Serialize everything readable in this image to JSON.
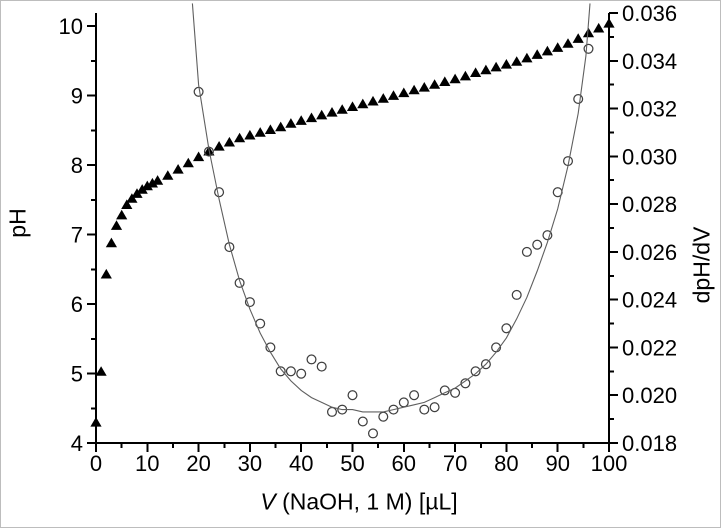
{
  "figure": {
    "background": "#ffffff",
    "border_color": "#bdbdbd",
    "axis_color": "#000000",
    "fit_line_color": "#5f5f5f",
    "circle_stroke_color": "#3f3f3f"
  },
  "chart_data": {
    "type": "scatter",
    "title": "",
    "xlabel": "V (NaOH, 1 M) [µL]",
    "xlabel_parts": {
      "variable": "V",
      "rest": " (NaOH, 1 M) [µL]"
    },
    "ylabel_left": "pH",
    "ylabel_right": "dpH/dV",
    "legend": "none",
    "grid": false,
    "axes": {
      "x": {
        "min": 0,
        "max": 100,
        "major_ticks": [
          0,
          10,
          20,
          30,
          40,
          50,
          60,
          70,
          80,
          90,
          100
        ],
        "minor_tick_step": 5,
        "label_decimals": 0
      },
      "left": {
        "min": 4,
        "max": 10,
        "major_ticks": [
          4,
          5,
          6,
          7,
          8,
          9,
          10
        ],
        "minor_tick_step": 0.5,
        "label_decimals": 0
      },
      "right": {
        "min": 0.018,
        "max": 0.036,
        "major_ticks": [
          0.018,
          0.02,
          0.022,
          0.024,
          0.026,
          0.028,
          0.03,
          0.032,
          0.034,
          0.036
        ],
        "minor_tick_step": 0.001,
        "label_decimals": 3
      }
    },
    "series": [
      {
        "name": "pH titration curve",
        "marker": "filled-triangle",
        "axis": "left",
        "color": "#000000",
        "points": [
          [
            0,
            4.3
          ],
          [
            1,
            5.03
          ],
          [
            2,
            6.43
          ],
          [
            3,
            6.88
          ],
          [
            4,
            7.13
          ],
          [
            5,
            7.28
          ],
          [
            6,
            7.43
          ],
          [
            7,
            7.52
          ],
          [
            8,
            7.59
          ],
          [
            9,
            7.65
          ],
          [
            10,
            7.7
          ],
          [
            11,
            7.74
          ],
          [
            12,
            7.78
          ],
          [
            14,
            7.85
          ],
          [
            16,
            7.94
          ],
          [
            18,
            8.03
          ],
          [
            20,
            8.12
          ],
          [
            22,
            8.2
          ],
          [
            24,
            8.27
          ],
          [
            26,
            8.33
          ],
          [
            28,
            8.39
          ],
          [
            30,
            8.43
          ],
          [
            32,
            8.47
          ],
          [
            34,
            8.51
          ],
          [
            36,
            8.55
          ],
          [
            38,
            8.6
          ],
          [
            40,
            8.64
          ],
          [
            42,
            8.68
          ],
          [
            44,
            8.72
          ],
          [
            46,
            8.76
          ],
          [
            48,
            8.8
          ],
          [
            50,
            8.84
          ],
          [
            52,
            8.88
          ],
          [
            54,
            8.92
          ],
          [
            56,
            8.96
          ],
          [
            58,
            9.0
          ],
          [
            60,
            9.04
          ],
          [
            62,
            9.08
          ],
          [
            64,
            9.12
          ],
          [
            66,
            9.16
          ],
          [
            68,
            9.2
          ],
          [
            70,
            9.24
          ],
          [
            72,
            9.28
          ],
          [
            74,
            9.33
          ],
          [
            76,
            9.37
          ],
          [
            78,
            9.41
          ],
          [
            80,
            9.45
          ],
          [
            82,
            9.49
          ],
          [
            84,
            9.54
          ],
          [
            86,
            9.59
          ],
          [
            88,
            9.64
          ],
          [
            90,
            9.69
          ],
          [
            92,
            9.75
          ],
          [
            94,
            9.82
          ],
          [
            96,
            9.9
          ],
          [
            98,
            9.97
          ],
          [
            100,
            10.04
          ]
        ]
      },
      {
        "name": "dpH/dV derivative",
        "marker": "open-circle",
        "axis": "right",
        "color": "#3f3f3f",
        "points": [
          [
            20,
            0.0327
          ],
          [
            22,
            0.0302
          ],
          [
            24,
            0.0285
          ],
          [
            26,
            0.0262
          ],
          [
            28,
            0.0247
          ],
          [
            30,
            0.0239
          ],
          [
            32,
            0.023
          ],
          [
            34,
            0.022
          ],
          [
            36,
            0.021
          ],
          [
            38,
            0.021
          ],
          [
            40,
            0.0209
          ],
          [
            42,
            0.0215
          ],
          [
            44,
            0.0212
          ],
          [
            46,
            0.0193
          ],
          [
            48,
            0.0194
          ],
          [
            50,
            0.02
          ],
          [
            52,
            0.0189
          ],
          [
            54,
            0.0184
          ],
          [
            56,
            0.0191
          ],
          [
            58,
            0.0194
          ],
          [
            60,
            0.0197
          ],
          [
            62,
            0.02
          ],
          [
            64,
            0.0194
          ],
          [
            66,
            0.0195
          ],
          [
            68,
            0.0202
          ],
          [
            70,
            0.0201
          ],
          [
            72,
            0.0205
          ],
          [
            74,
            0.021
          ],
          [
            76,
            0.0213
          ],
          [
            78,
            0.022
          ],
          [
            80,
            0.0228
          ],
          [
            82,
            0.0242
          ],
          [
            84,
            0.026
          ],
          [
            86,
            0.0263
          ],
          [
            88,
            0.0267
          ],
          [
            90,
            0.0285
          ],
          [
            92,
            0.0298
          ],
          [
            94,
            0.0324
          ],
          [
            96,
            0.0345
          ]
        ]
      },
      {
        "name": "dpH/dV fit curve",
        "marker": "line",
        "axis": "right",
        "color": "#5f5f5f",
        "points": [
          [
            18.8,
            0.0364
          ],
          [
            20,
            0.033
          ],
          [
            22,
            0.0303
          ],
          [
            24,
            0.0282
          ],
          [
            26,
            0.0263
          ],
          [
            28,
            0.0248
          ],
          [
            30,
            0.0236
          ],
          [
            32,
            0.0226
          ],
          [
            34,
            0.0218
          ],
          [
            36,
            0.0211
          ],
          [
            38,
            0.0206
          ],
          [
            40,
            0.0202
          ],
          [
            42,
            0.0199
          ],
          [
            44,
            0.0197
          ],
          [
            46,
            0.0195
          ],
          [
            48,
            0.0194
          ],
          [
            50,
            0.0194
          ],
          [
            52,
            0.0193
          ],
          [
            54,
            0.0193
          ],
          [
            56,
            0.0193
          ],
          [
            58,
            0.0194
          ],
          [
            60,
            0.0195
          ],
          [
            62,
            0.0196
          ],
          [
            64,
            0.0197
          ],
          [
            66,
            0.0199
          ],
          [
            68,
            0.0201
          ],
          [
            70,
            0.0203
          ],
          [
            72,
            0.0206
          ],
          [
            74,
            0.0209
          ],
          [
            76,
            0.0213
          ],
          [
            78,
            0.0218
          ],
          [
            80,
            0.0224
          ],
          [
            82,
            0.0232
          ],
          [
            84,
            0.0241
          ],
          [
            86,
            0.0252
          ],
          [
            88,
            0.0264
          ],
          [
            90,
            0.0278
          ],
          [
            92,
            0.0296
          ],
          [
            94,
            0.0318
          ],
          [
            95.5,
            0.0342
          ],
          [
            96.3,
            0.0364
          ]
        ]
      }
    ]
  }
}
